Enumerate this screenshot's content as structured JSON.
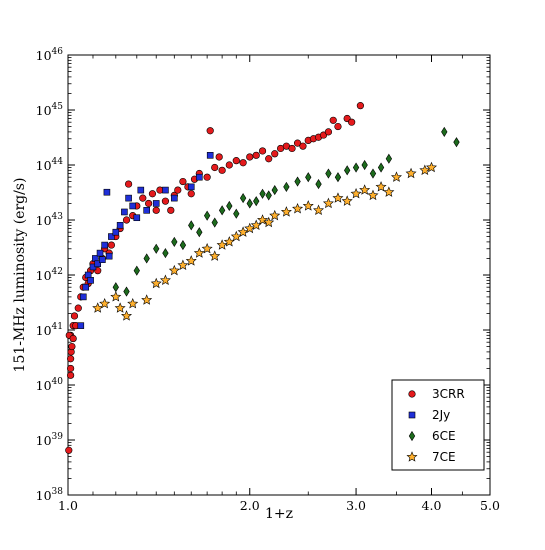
{
  "chart_data": {
    "type": "scatter",
    "x_scale": "log",
    "y_scale": "log",
    "xlim": [
      1.0,
      5.0
    ],
    "ylim": [
      1e+38,
      1e+46
    ],
    "xlabel": "1+z",
    "ylabel": "151-MHz luminosity (erg/s)",
    "x_ticks": [
      {
        "value": 1.0,
        "label": "1.0"
      },
      {
        "value": 2.0,
        "label": "2.0"
      },
      {
        "value": 3.0,
        "label": "3.0"
      },
      {
        "value": 4.0,
        "label": "4.0"
      },
      {
        "value": 5.0,
        "label": "5.0"
      }
    ],
    "y_ticks": [
      {
        "value": 1e+38,
        "base": "10",
        "exp": "38"
      },
      {
        "value": 1e+39,
        "base": "10",
        "exp": "39"
      },
      {
        "value": 1e+40,
        "base": "10",
        "exp": "40"
      },
      {
        "value": 1e+41,
        "base": "10",
        "exp": "41"
      },
      {
        "value": 1e+42,
        "base": "10",
        "exp": "42"
      },
      {
        "value": 1e+43,
        "base": "10",
        "exp": "43"
      },
      {
        "value": 1e+44,
        "base": "10",
        "exp": "44"
      },
      {
        "value": 1e+45,
        "base": "10",
        "exp": "45"
      },
      {
        "value": 1e+46,
        "base": "10",
        "exp": "46"
      }
    ],
    "legend": {
      "position": "lower-right"
    },
    "series": [
      {
        "name": "3CRR",
        "marker": "circle",
        "color": "#e41a1c",
        "points": [
          [
            1.003,
            6.5e+38
          ],
          [
            1.01,
            1.5e+40
          ],
          [
            1.01,
            2e+40
          ],
          [
            1.01,
            3e+40
          ],
          [
            1.012,
            4e+40
          ],
          [
            1.015,
            5e+40
          ],
          [
            1.01,
            8e+40
          ],
          [
            1.005,
            8e+40
          ],
          [
            1.02,
            7e+40
          ],
          [
            1.02,
            1.2e+41
          ],
          [
            1.025,
            1.8e+41
          ],
          [
            1.03,
            1.2e+41
          ],
          [
            1.04,
            2.5e+41
          ],
          [
            1.05,
            4e+41
          ],
          [
            1.06,
            6e+41
          ],
          [
            1.07,
            9e+41
          ],
          [
            1.08,
            7e+41
          ],
          [
            1.09,
            1.2e+42
          ],
          [
            1.1,
            1.6e+42
          ],
          [
            1.12,
            1.2e+42
          ],
          [
            1.14,
            2e+42
          ],
          [
            1.15,
            3e+42
          ],
          [
            1.17,
            2.5e+42
          ],
          [
            1.18,
            3.5e+42
          ],
          [
            1.2,
            5e+42
          ],
          [
            1.22,
            7e+42
          ],
          [
            1.25,
            1e+43
          ],
          [
            1.26,
            4.5e+43
          ],
          [
            1.28,
            1.2e+43
          ],
          [
            1.3,
            1.8e+43
          ],
          [
            1.33,
            2.5e+43
          ],
          [
            1.36,
            2e+43
          ],
          [
            1.38,
            3e+43
          ],
          [
            1.4,
            1.5e+43
          ],
          [
            1.42,
            3.5e+43
          ],
          [
            1.45,
            2.2e+43
          ],
          [
            1.48,
            1.5e+43
          ],
          [
            1.5,
            2.8e+43
          ],
          [
            1.52,
            3.5e+43
          ],
          [
            1.55,
            5e+43
          ],
          [
            1.58,
            4e+43
          ],
          [
            1.6,
            3e+43
          ],
          [
            1.62,
            5.5e+43
          ],
          [
            1.65,
            7e+43
          ],
          [
            1.7,
            6e+43
          ],
          [
            1.72,
            4.2e+44
          ],
          [
            1.75,
            9e+43
          ],
          [
            1.78,
            1.4e+44
          ],
          [
            1.8,
            8e+43
          ],
          [
            1.85,
            1e+44
          ],
          [
            1.9,
            1.2e+44
          ],
          [
            1.95,
            1.1e+44
          ],
          [
            2.0,
            1.4e+44
          ],
          [
            2.05,
            1.5e+44
          ],
          [
            2.1,
            1.8e+44
          ],
          [
            2.15,
            1.3e+44
          ],
          [
            2.2,
            1.6e+44
          ],
          [
            2.25,
            2e+44
          ],
          [
            2.3,
            2.2e+44
          ],
          [
            2.35,
            2e+44
          ],
          [
            2.4,
            2.5e+44
          ],
          [
            2.45,
            2.2e+44
          ],
          [
            2.5,
            2.8e+44
          ],
          [
            2.55,
            3e+44
          ],
          [
            2.6,
            3.2e+44
          ],
          [
            2.65,
            3.5e+44
          ],
          [
            2.7,
            4e+44
          ],
          [
            2.75,
            6.5e+44
          ],
          [
            2.8,
            5e+44
          ],
          [
            2.9,
            7e+44
          ],
          [
            2.95,
            6e+44
          ],
          [
            3.05,
            1.2e+45
          ]
        ]
      },
      {
        "name": "2Jy",
        "marker": "square",
        "color": "#1f2fd8",
        "points": [
          [
            1.05,
            1.2e+41
          ],
          [
            1.06,
            4e+41
          ],
          [
            1.07,
            6e+41
          ],
          [
            1.08,
            1e+42
          ],
          [
            1.09,
            8e+41
          ],
          [
            1.1,
            1.4e+42
          ],
          [
            1.11,
            2e+42
          ],
          [
            1.12,
            1.6e+42
          ],
          [
            1.13,
            2.5e+42
          ],
          [
            1.14,
            1.9e+42
          ],
          [
            1.15,
            3.5e+42
          ],
          [
            1.16,
            3.2e+43
          ],
          [
            1.17,
            2.2e+42
          ],
          [
            1.18,
            5e+42
          ],
          [
            1.2,
            6e+42
          ],
          [
            1.22,
            8e+42
          ],
          [
            1.24,
            1.4e+43
          ],
          [
            1.26,
            2.5e+43
          ],
          [
            1.28,
            1.8e+43
          ],
          [
            1.3,
            1.1e+43
          ],
          [
            1.32,
            3.5e+43
          ],
          [
            1.35,
            1.5e+43
          ],
          [
            1.4,
            2e+43
          ],
          [
            1.45,
            3.5e+43
          ],
          [
            1.5,
            2.5e+43
          ],
          [
            1.6,
            4e+43
          ],
          [
            1.65,
            6e+43
          ],
          [
            1.72,
            1.5e+44
          ]
        ]
      },
      {
        "name": "6CE",
        "marker": "diamond",
        "color": "#1d6b1d",
        "points": [
          [
            1.2,
            6e+41
          ],
          [
            1.25,
            5e+41
          ],
          [
            1.3,
            1.2e+42
          ],
          [
            1.35,
            2e+42
          ],
          [
            1.4,
            3e+42
          ],
          [
            1.45,
            2.5e+42
          ],
          [
            1.5,
            4e+42
          ],
          [
            1.55,
            3.5e+42
          ],
          [
            1.6,
            8e+42
          ],
          [
            1.65,
            6e+42
          ],
          [
            1.7,
            1.2e+43
          ],
          [
            1.75,
            9e+42
          ],
          [
            1.8,
            1.5e+43
          ],
          [
            1.85,
            1.8e+43
          ],
          [
            1.9,
            1.3e+43
          ],
          [
            1.95,
            2.5e+43
          ],
          [
            2.0,
            2e+43
          ],
          [
            2.05,
            2.2e+43
          ],
          [
            2.1,
            3e+43
          ],
          [
            2.15,
            2.8e+43
          ],
          [
            2.2,
            3.5e+43
          ],
          [
            2.3,
            4e+43
          ],
          [
            2.4,
            5e+43
          ],
          [
            2.5,
            6e+43
          ],
          [
            2.6,
            4.5e+43
          ],
          [
            2.7,
            7e+43
          ],
          [
            2.8,
            6e+43
          ],
          [
            2.9,
            8e+43
          ],
          [
            3.0,
            9e+43
          ],
          [
            3.1,
            1e+44
          ],
          [
            3.2,
            7e+43
          ],
          [
            3.3,
            9e+43
          ],
          [
            3.4,
            1.3e+44
          ],
          [
            4.2,
            4e+44
          ],
          [
            4.4,
            2.6e+44
          ]
        ]
      },
      {
        "name": "7CE",
        "marker": "star",
        "color": "#ffb02e",
        "points": [
          [
            1.12,
            2.5e+41
          ],
          [
            1.15,
            3e+41
          ],
          [
            1.2,
            4e+41
          ],
          [
            1.22,
            2.5e+41
          ],
          [
            1.25,
            1.8e+41
          ],
          [
            1.28,
            3e+41
          ],
          [
            1.35,
            3.5e+41
          ],
          [
            1.4,
            7e+41
          ],
          [
            1.45,
            8e+41
          ],
          [
            1.5,
            1.2e+42
          ],
          [
            1.55,
            1.5e+42
          ],
          [
            1.6,
            1.8e+42
          ],
          [
            1.65,
            2.5e+42
          ],
          [
            1.7,
            3e+42
          ],
          [
            1.75,
            2.2e+42
          ],
          [
            1.8,
            3.5e+42
          ],
          [
            1.85,
            4e+42
          ],
          [
            1.9,
            5e+42
          ],
          [
            1.95,
            6e+42
          ],
          [
            2.0,
            7e+42
          ],
          [
            2.05,
            8e+42
          ],
          [
            2.1,
            1e+43
          ],
          [
            2.15,
            9e+42
          ],
          [
            2.2,
            1.2e+43
          ],
          [
            2.3,
            1.4e+43
          ],
          [
            2.4,
            1.6e+43
          ],
          [
            2.5,
            1.8e+43
          ],
          [
            2.6,
            1.5e+43
          ],
          [
            2.7,
            2e+43
          ],
          [
            2.8,
            2.5e+43
          ],
          [
            2.9,
            2.2e+43
          ],
          [
            3.0,
            3e+43
          ],
          [
            3.1,
            3.5e+43
          ],
          [
            3.2,
            2.8e+43
          ],
          [
            3.3,
            4e+43
          ],
          [
            3.4,
            3.2e+43
          ],
          [
            3.5,
            6e+43
          ],
          [
            3.7,
            7e+43
          ],
          [
            3.9,
            8e+43
          ],
          [
            4.0,
            9e+43
          ]
        ]
      }
    ]
  }
}
